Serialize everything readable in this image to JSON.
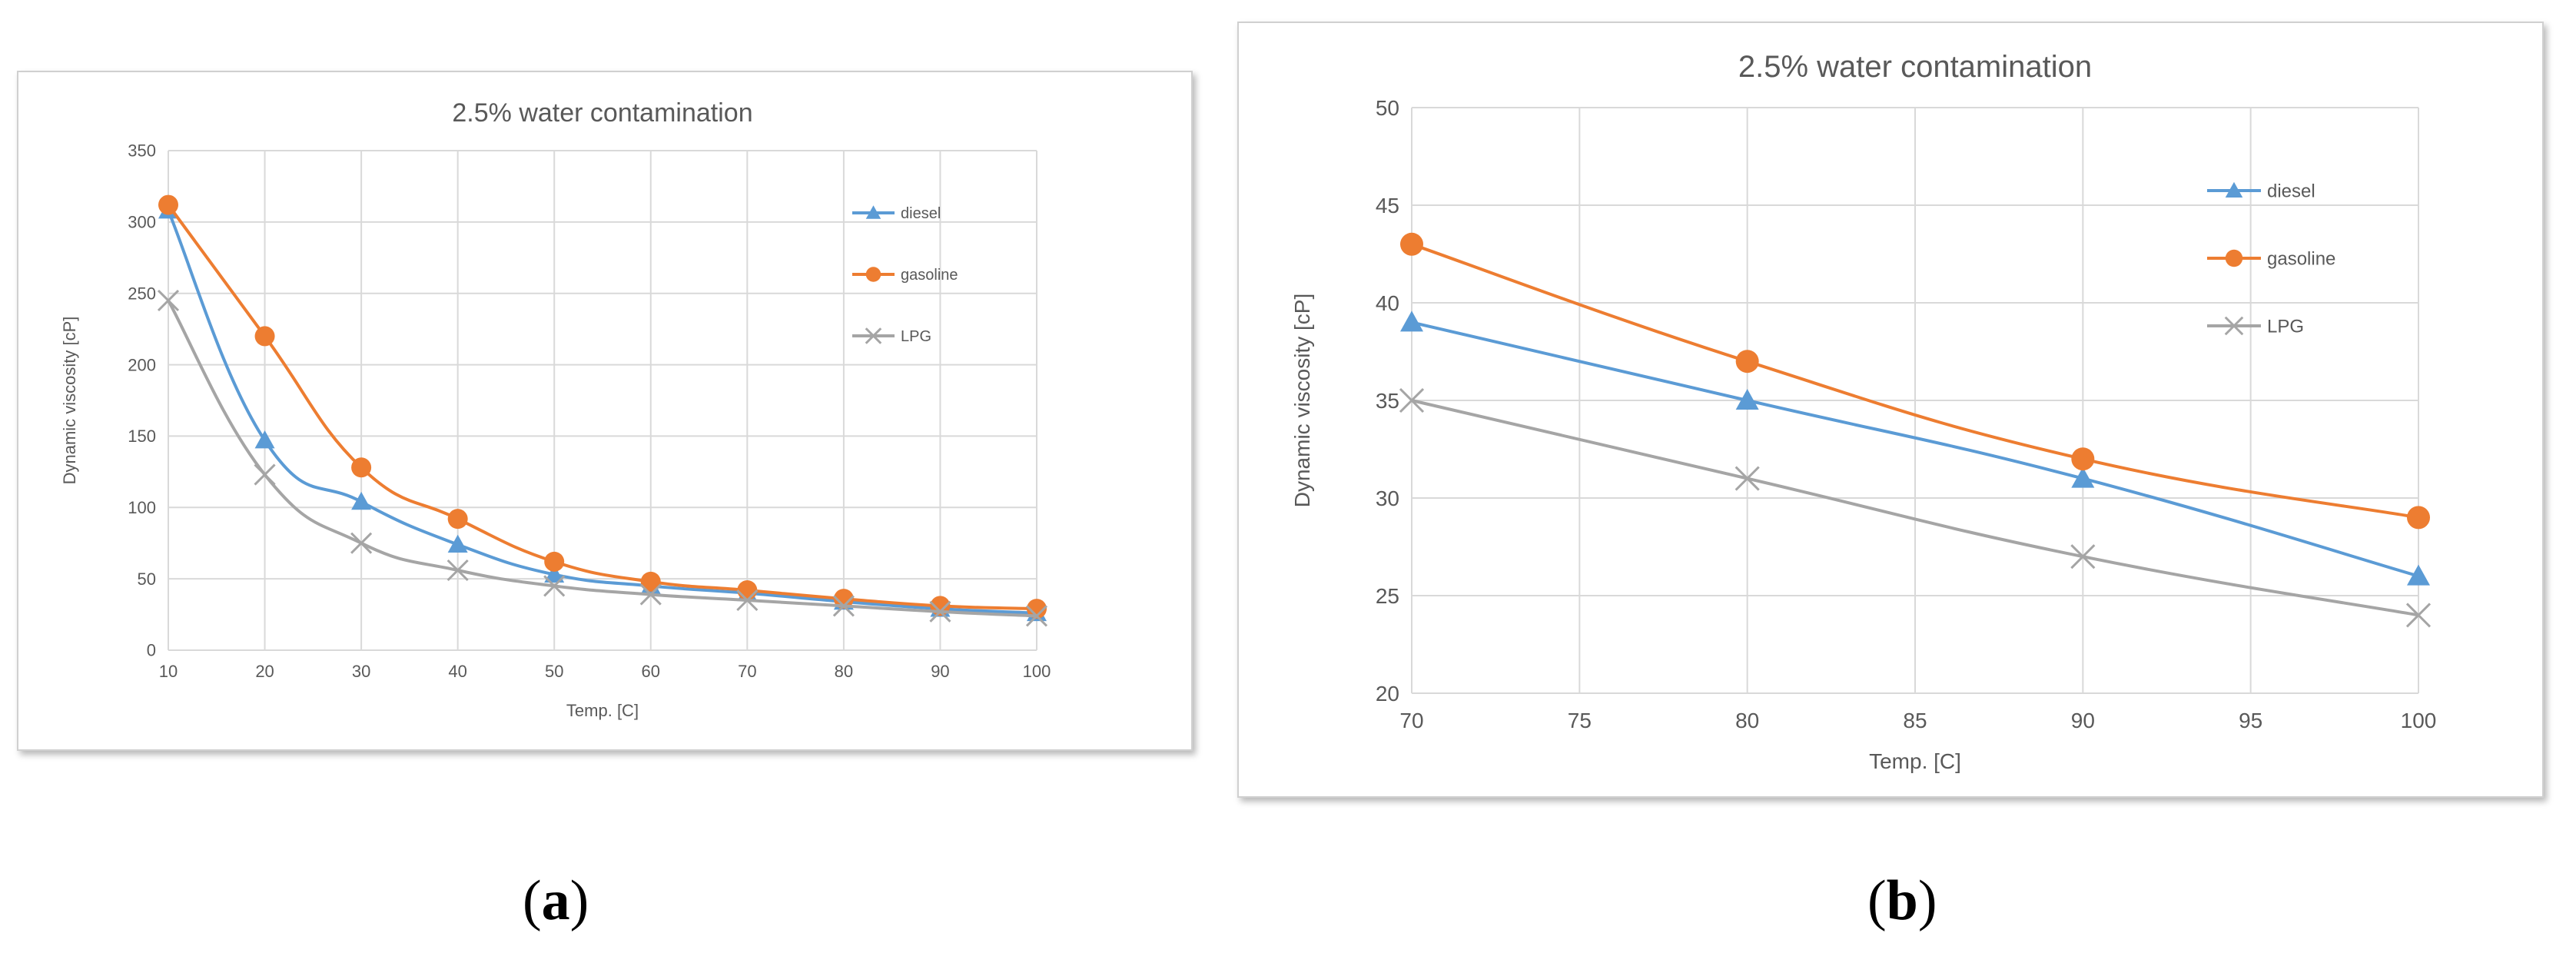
{
  "chart_data": [
    {
      "type": "line",
      "title": "2.5% water contamination",
      "xlabel": "Temp. [C]",
      "ylabel": "Dynamic viscosity [cP]",
      "xlim": [
        10,
        100
      ],
      "ylim": [
        0,
        350
      ],
      "x_ticks": [
        10,
        20,
        30,
        40,
        50,
        60,
        70,
        80,
        90,
        100
      ],
      "y_ticks": [
        0,
        50,
        100,
        150,
        200,
        250,
        300,
        350
      ],
      "x": [
        10,
        20,
        30,
        40,
        50,
        60,
        70,
        80,
        90,
        100
      ],
      "grid": true,
      "legend_position": "right",
      "smooth": true,
      "series": [
        {
          "name": "diesel",
          "color": "#5b9bd5",
          "marker": "triangle",
          "values": [
            308,
            147,
            104,
            74,
            53,
            45,
            40,
            34,
            29,
            26
          ]
        },
        {
          "name": "gasoline",
          "color": "#ed7d31",
          "marker": "circle",
          "values": [
            312,
            220,
            128,
            92,
            62,
            48,
            42,
            36,
            31,
            29
          ]
        },
        {
          "name": "LPG",
          "color": "#a5a5a5",
          "marker": "cross",
          "values": [
            245,
            123,
            75,
            56,
            45,
            39,
            35,
            31,
            27,
            24
          ]
        }
      ]
    },
    {
      "type": "line",
      "title": "2.5% water contamination",
      "xlabel": "Temp. [C]",
      "ylabel": "Dynamic viscosity [cP]",
      "xlim": [
        70,
        100
      ],
      "ylim": [
        20,
        50
      ],
      "x_ticks": [
        70,
        75,
        80,
        85,
        90,
        95,
        100
      ],
      "y_ticks": [
        20,
        25,
        30,
        35,
        40,
        45,
        50
      ],
      "x": [
        70,
        80,
        90,
        100
      ],
      "grid": true,
      "legend_position": "right",
      "smooth": true,
      "series": [
        {
          "name": "diesel",
          "color": "#5b9bd5",
          "marker": "triangle",
          "values": [
            39,
            35,
            31,
            26
          ]
        },
        {
          "name": "gasoline",
          "color": "#ed7d31",
          "marker": "circle",
          "values": [
            43,
            37,
            32,
            29
          ]
        },
        {
          "name": "LPG",
          "color": "#a5a5a5",
          "marker": "cross",
          "values": [
            35,
            31,
            27,
            24
          ]
        }
      ]
    }
  ],
  "captions": [
    "(a)",
    "(b)"
  ]
}
